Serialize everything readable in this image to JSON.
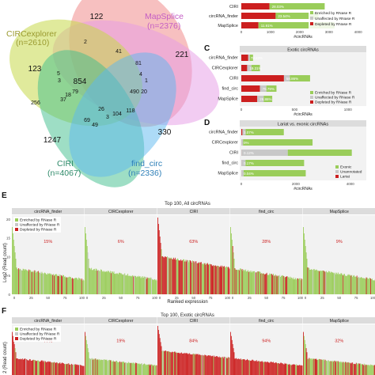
{
  "colors": {
    "enriched": "#9ACD5A",
    "unaffected": "#C8C8C8",
    "depleted": "#CC1F1F",
    "circ_finder": "#A7C83C",
    "circexplorer": "#F08C8C",
    "mapsplice": "#E69AE6",
    "find_circ": "#5BB8F0",
    "ciri": "#3DBE8C",
    "panel_strip": "#DCDCDC"
  },
  "venn": {
    "labels": {
      "circexplorer": "CIRCexplorer",
      "circexplorer_n": "(n=2610)",
      "mapsplice": "MapSplice",
      "mapsplice_n": "(n=2376)",
      "ciri": "CIRI",
      "ciri_n": "(n=4067)",
      "find_circ": "find_circ",
      "find_circ_n": "(n=2336)"
    },
    "numbers": [
      "122",
      "221",
      "330",
      "1247",
      "123",
      "854",
      "490",
      "104",
      "118",
      "69",
      "79",
      "2",
      "5",
      "3",
      "41",
      "81",
      "4",
      "1",
      "18",
      "26",
      "3",
      "20",
      "256",
      "37",
      "49"
    ]
  },
  "chart_data": [
    {
      "panel": "B",
      "type": "bar",
      "title": "",
      "categories": [
        "CIRI",
        "circRNA_finder",
        "MapSplice"
      ],
      "series": [
        {
          "name": "Enriched by RNase R",
          "values": [
            null,
            null,
            null
          ]
        },
        {
          "name": "Unaffected by RNase R",
          "values": [
            null,
            null,
            null
          ]
        },
        {
          "name": "Depleted by RNase R",
          "values": [
            null,
            null,
            null
          ]
        }
      ],
      "data_labels": [
        "28.03%",
        "23.54%",
        "11.91%"
      ],
      "xlabel": "#circRNAs",
      "ticks": [
        "0",
        "1000",
        "2000",
        "3000",
        "4000"
      ],
      "xlim": [
        0,
        4200
      ]
    },
    {
      "panel": "C",
      "type": "bar",
      "title": "Exotic circRNAs",
      "categories": [
        "circRNA_finder",
        "CIRCexplorer",
        "CIRI",
        "find_circ",
        "MapSplice"
      ],
      "enriched": [
        30,
        80,
        190,
        95,
        80
      ],
      "unaffected": [
        15,
        40,
        55,
        60,
        60
      ],
      "depleted": [
        65,
        55,
        400,
        175,
        150
      ],
      "data_labels": [
        "78.23%",
        "19.31%",
        "58.86%",
        "75.79%",
        "28.86%"
      ],
      "xlabel": "#circRNAs",
      "ticks": [
        "0",
        "500",
        "1000"
      ],
      "xlim": [
        0,
        1150
      ],
      "legend": [
        "Enriched by RNase R",
        "Unaffected by RNase R",
        "Depleted by RNase R"
      ]
    },
    {
      "panel": "D",
      "type": "bar",
      "title": "Lariat vs. exonic circRNAs",
      "categories": [
        "circRNA_finder",
        "CIRCexplorer",
        "CIRI",
        "find_circ",
        "MapSplice"
      ],
      "lariat": [
        40,
        5,
        5,
        5,
        5
      ],
      "unannotated": [
        120,
        60,
        1700,
        150,
        80
      ],
      "exonic": [
        1400,
        2550,
        2350,
        2150,
        2280
      ],
      "data_labels": [
        "3.07%",
        "0%",
        "0.12%",
        "0.17%",
        "0.04%"
      ],
      "xlabel": "#circRNAs",
      "ticks": [
        "0",
        "2000",
        "4000"
      ],
      "xlim": [
        0,
        4500
      ],
      "legend": [
        "Exonic",
        "Unannotated",
        "Lariat"
      ]
    },
    {
      "panel": "E",
      "type": "bar",
      "title": "Top 100, All circRNAs",
      "facets": [
        "circRNA_finder",
        "CIRCexplorer",
        "CIRI",
        "find_circ",
        "MapSplice"
      ],
      "percent": [
        "15%",
        "6%",
        "63%",
        "28%",
        "9%"
      ],
      "ylabel": "Log2 (Read count)",
      "xlabel": "Ranked expression",
      "yticks": [
        "0",
        "5",
        "10",
        "15",
        "20"
      ],
      "xticks": [
        "0",
        "25",
        "50",
        "75",
        "100"
      ],
      "legend": [
        "Enriched by RNase R",
        "Unaffected by RNase R",
        "Depleted by RNase R"
      ]
    },
    {
      "panel": "F",
      "type": "bar",
      "title": "Top 100, Exotic circRNAs",
      "facets": [
        "circRNA_finder",
        "CIRCexplorer",
        "CIRI",
        "find_circ",
        "MapSplice"
      ],
      "percent": [
        "77%",
        "19%",
        "84%",
        "94%",
        "32%"
      ],
      "legend": [
        "Enriched by RNase R",
        "Unaffected by RNase R",
        "Depleted by RNase R"
      ]
    }
  ],
  "panel_letters": {
    "C": "C",
    "D": "D",
    "E": "E",
    "F": "F"
  },
  "axis_units": {
    "ylabel_f": "2 (Read count)"
  }
}
